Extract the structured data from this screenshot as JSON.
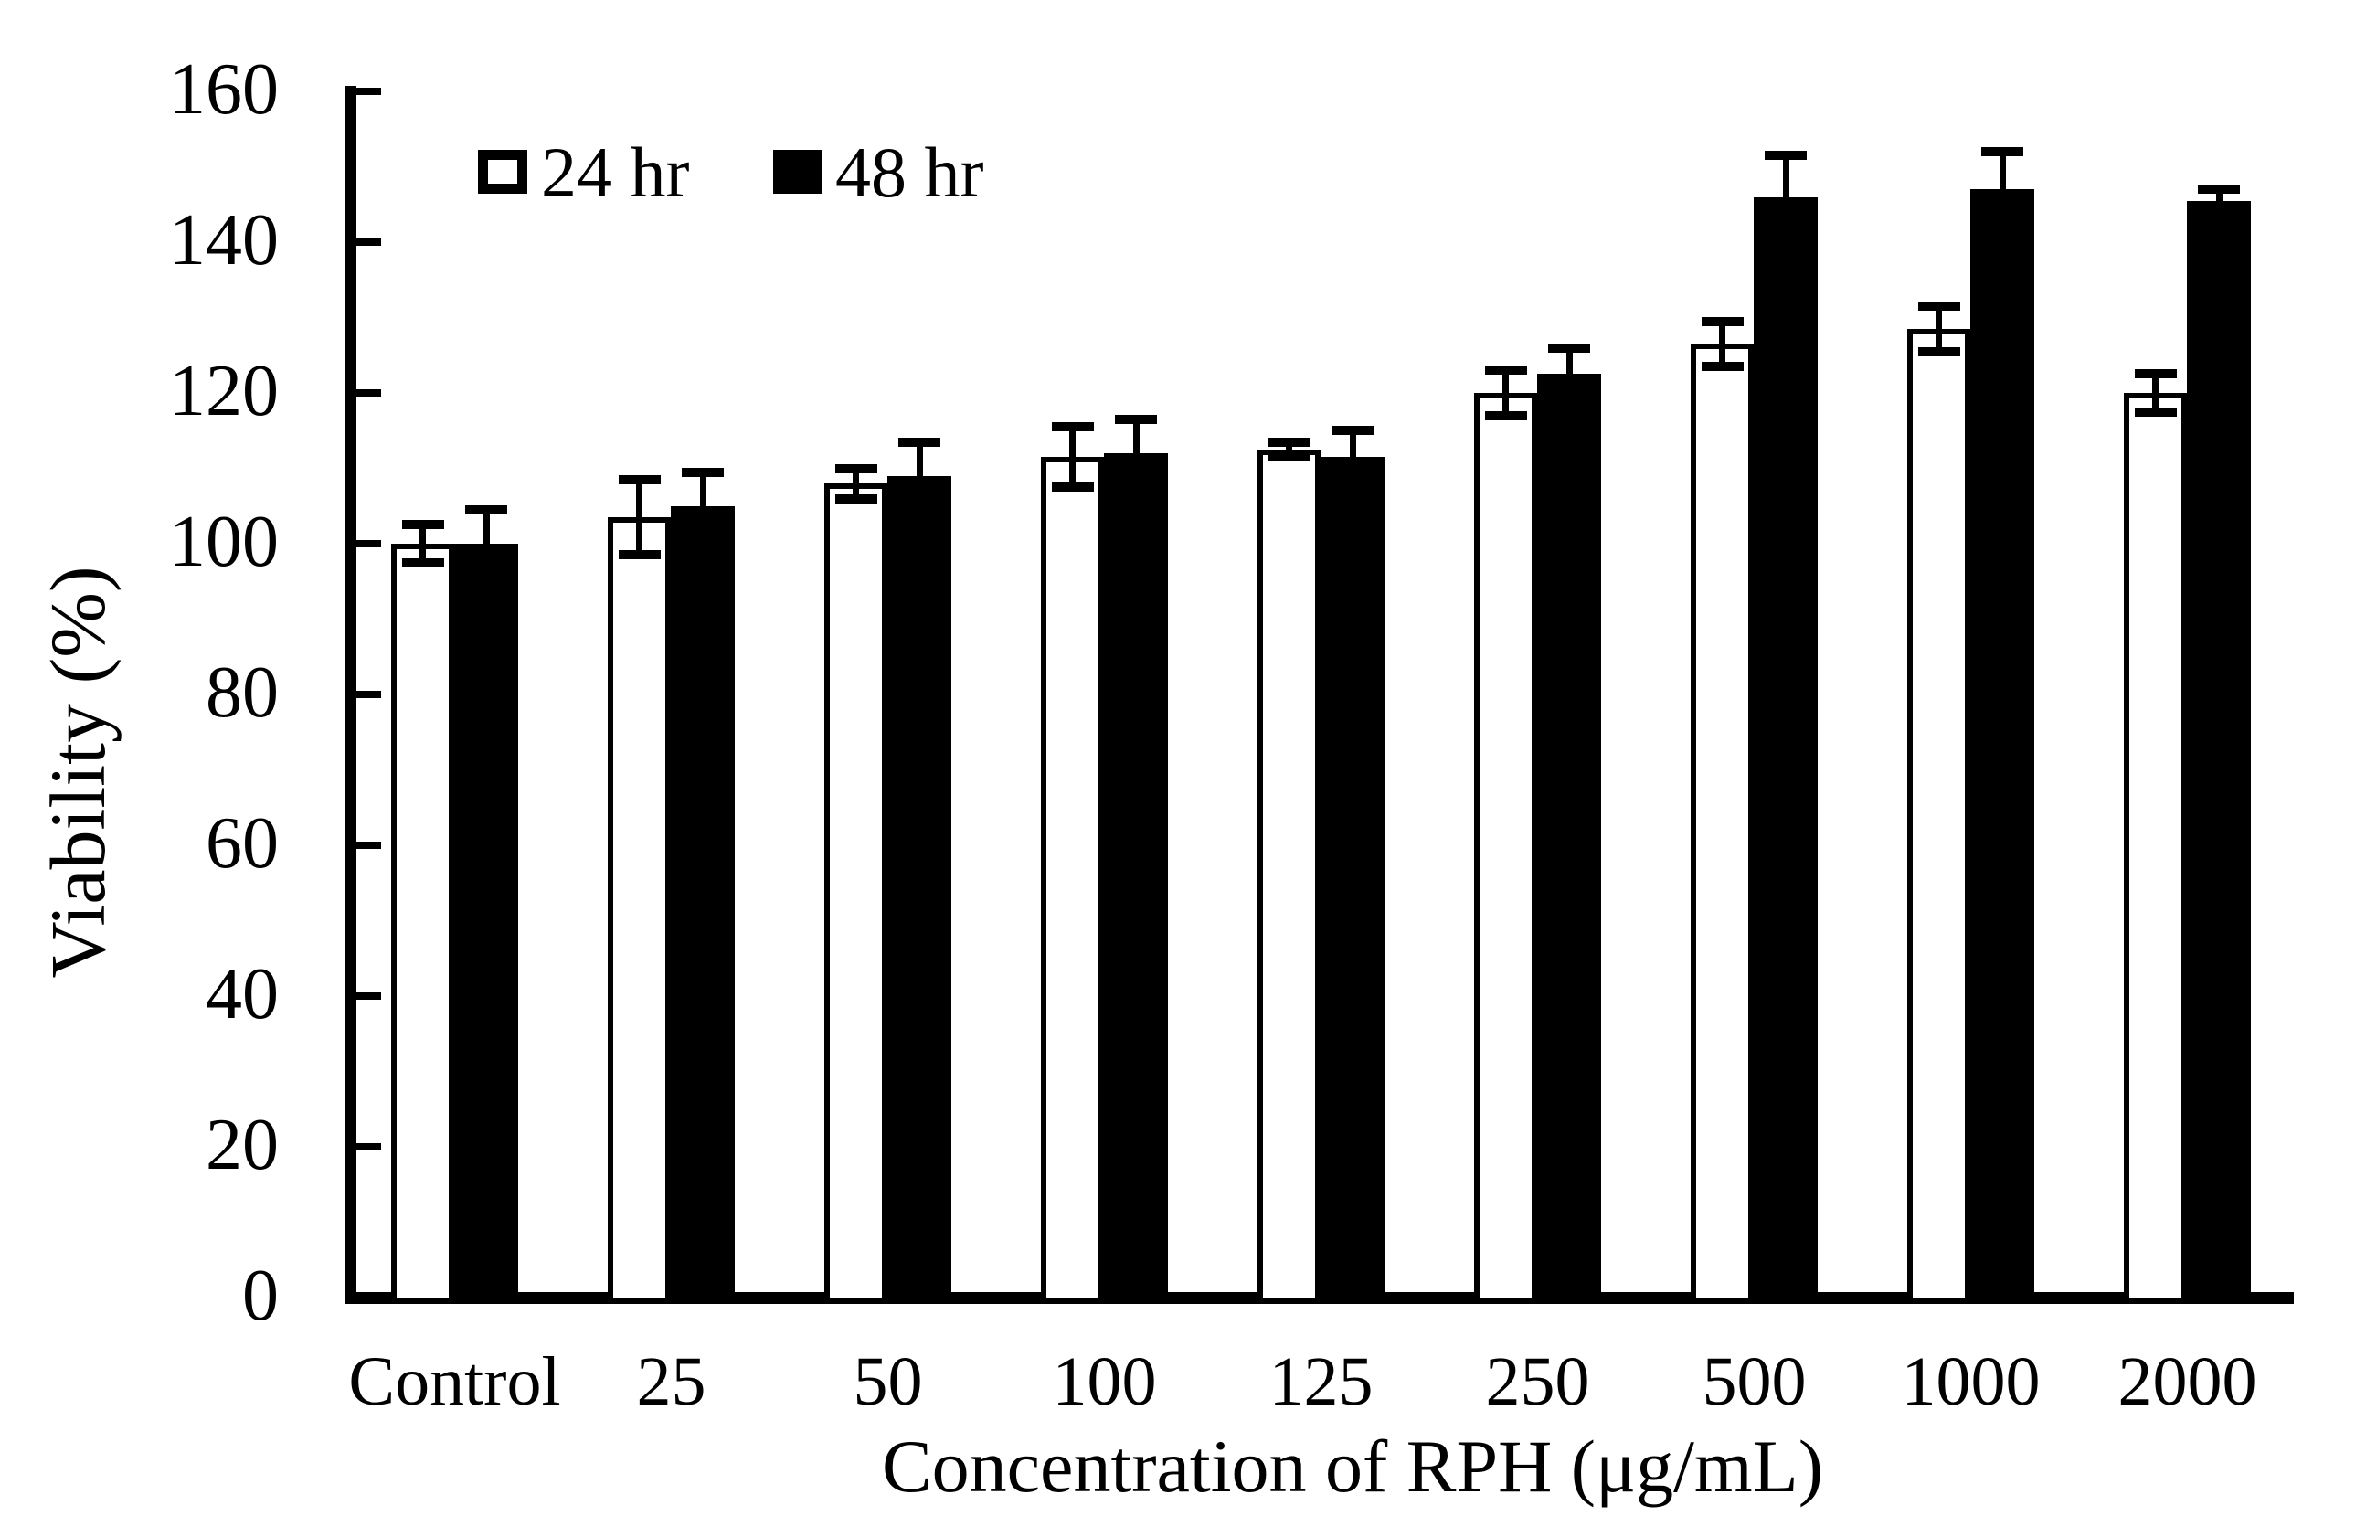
{
  "chart_data": {
    "type": "bar",
    "title": "",
    "xlabel": "Concentration of RPH (μg/mL)",
    "ylabel": "Viability (%)",
    "ylim": [
      0,
      160
    ],
    "ytick_step": 20,
    "ytick_labels": [
      "0",
      "20",
      "40",
      "60",
      "80",
      "100",
      "120",
      "140",
      "160"
    ],
    "grid": false,
    "legend_position": "top-left-inside",
    "categories": [
      "Control",
      "25",
      "50",
      "100",
      "125",
      "250",
      "500",
      "1000",
      "2000"
    ],
    "series": [
      {
        "name": "24 hr",
        "fill": "#ffffff",
        "border": "#000000",
        "values": [
          100,
          103.5,
          108,
          111.5,
          112.5,
          120,
          126.5,
          128.5,
          120
        ],
        "errors": [
          2.5,
          5,
          2,
          4,
          1,
          3,
          3,
          3,
          2.5
        ]
      },
      {
        "name": "48 hr",
        "fill": "#000000",
        "border": "#000000",
        "values": [
          100,
          105,
          109,
          112,
          111.5,
          122.5,
          146,
          147,
          145.5
        ],
        "errors": [
          4.5,
          4.5,
          4.5,
          4.5,
          3.5,
          3.5,
          5.5,
          5,
          1.5
        ]
      }
    ]
  },
  "colors": {
    "background": "#ffffff",
    "axis": "#000000",
    "bar_24hr_fill": "#ffffff",
    "bar_48hr_fill": "#000000"
  }
}
